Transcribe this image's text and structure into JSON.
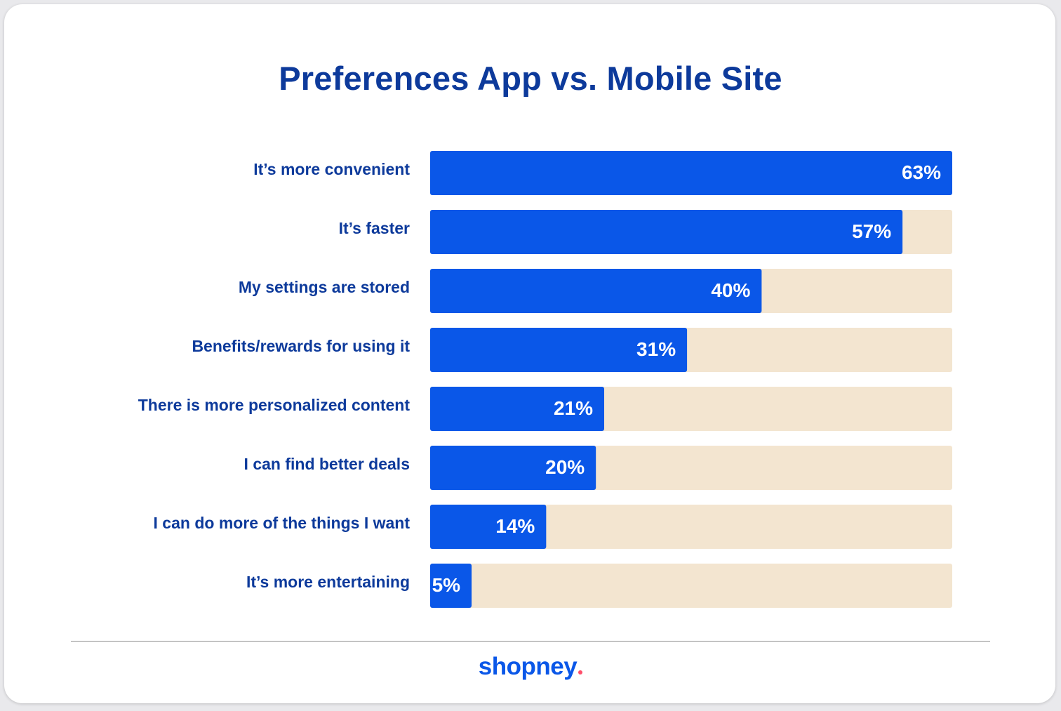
{
  "chart_data": {
    "type": "bar",
    "orientation": "horizontal",
    "title": "Preferences App vs. Mobile Site",
    "categories": [
      "It’s more convenient",
      "It’s faster",
      "My settings are stored",
      "Benefits/rewards for using it",
      "There is more personalized content",
      "I can find better deals",
      "I can do more of the things I want",
      "It’s more entertaining"
    ],
    "values": [
      63,
      57,
      40,
      31,
      21,
      20,
      14,
      5
    ],
    "value_labels": [
      "63%",
      "57%",
      "40%",
      "31%",
      "21%",
      "20%",
      "14%",
      "5%"
    ],
    "xlim": [
      0,
      63
    ],
    "grid": false,
    "legend": "none",
    "colors": {
      "bar": "#0a57e8",
      "track": "#f3e5d0",
      "title": "#0d3a9b",
      "label": "#0d3a9b",
      "value": "#ffffff"
    }
  },
  "brand": {
    "logo_text": "shopney",
    "logo_color": "#0a57e8",
    "dot_color": "#ff4f6b"
  }
}
